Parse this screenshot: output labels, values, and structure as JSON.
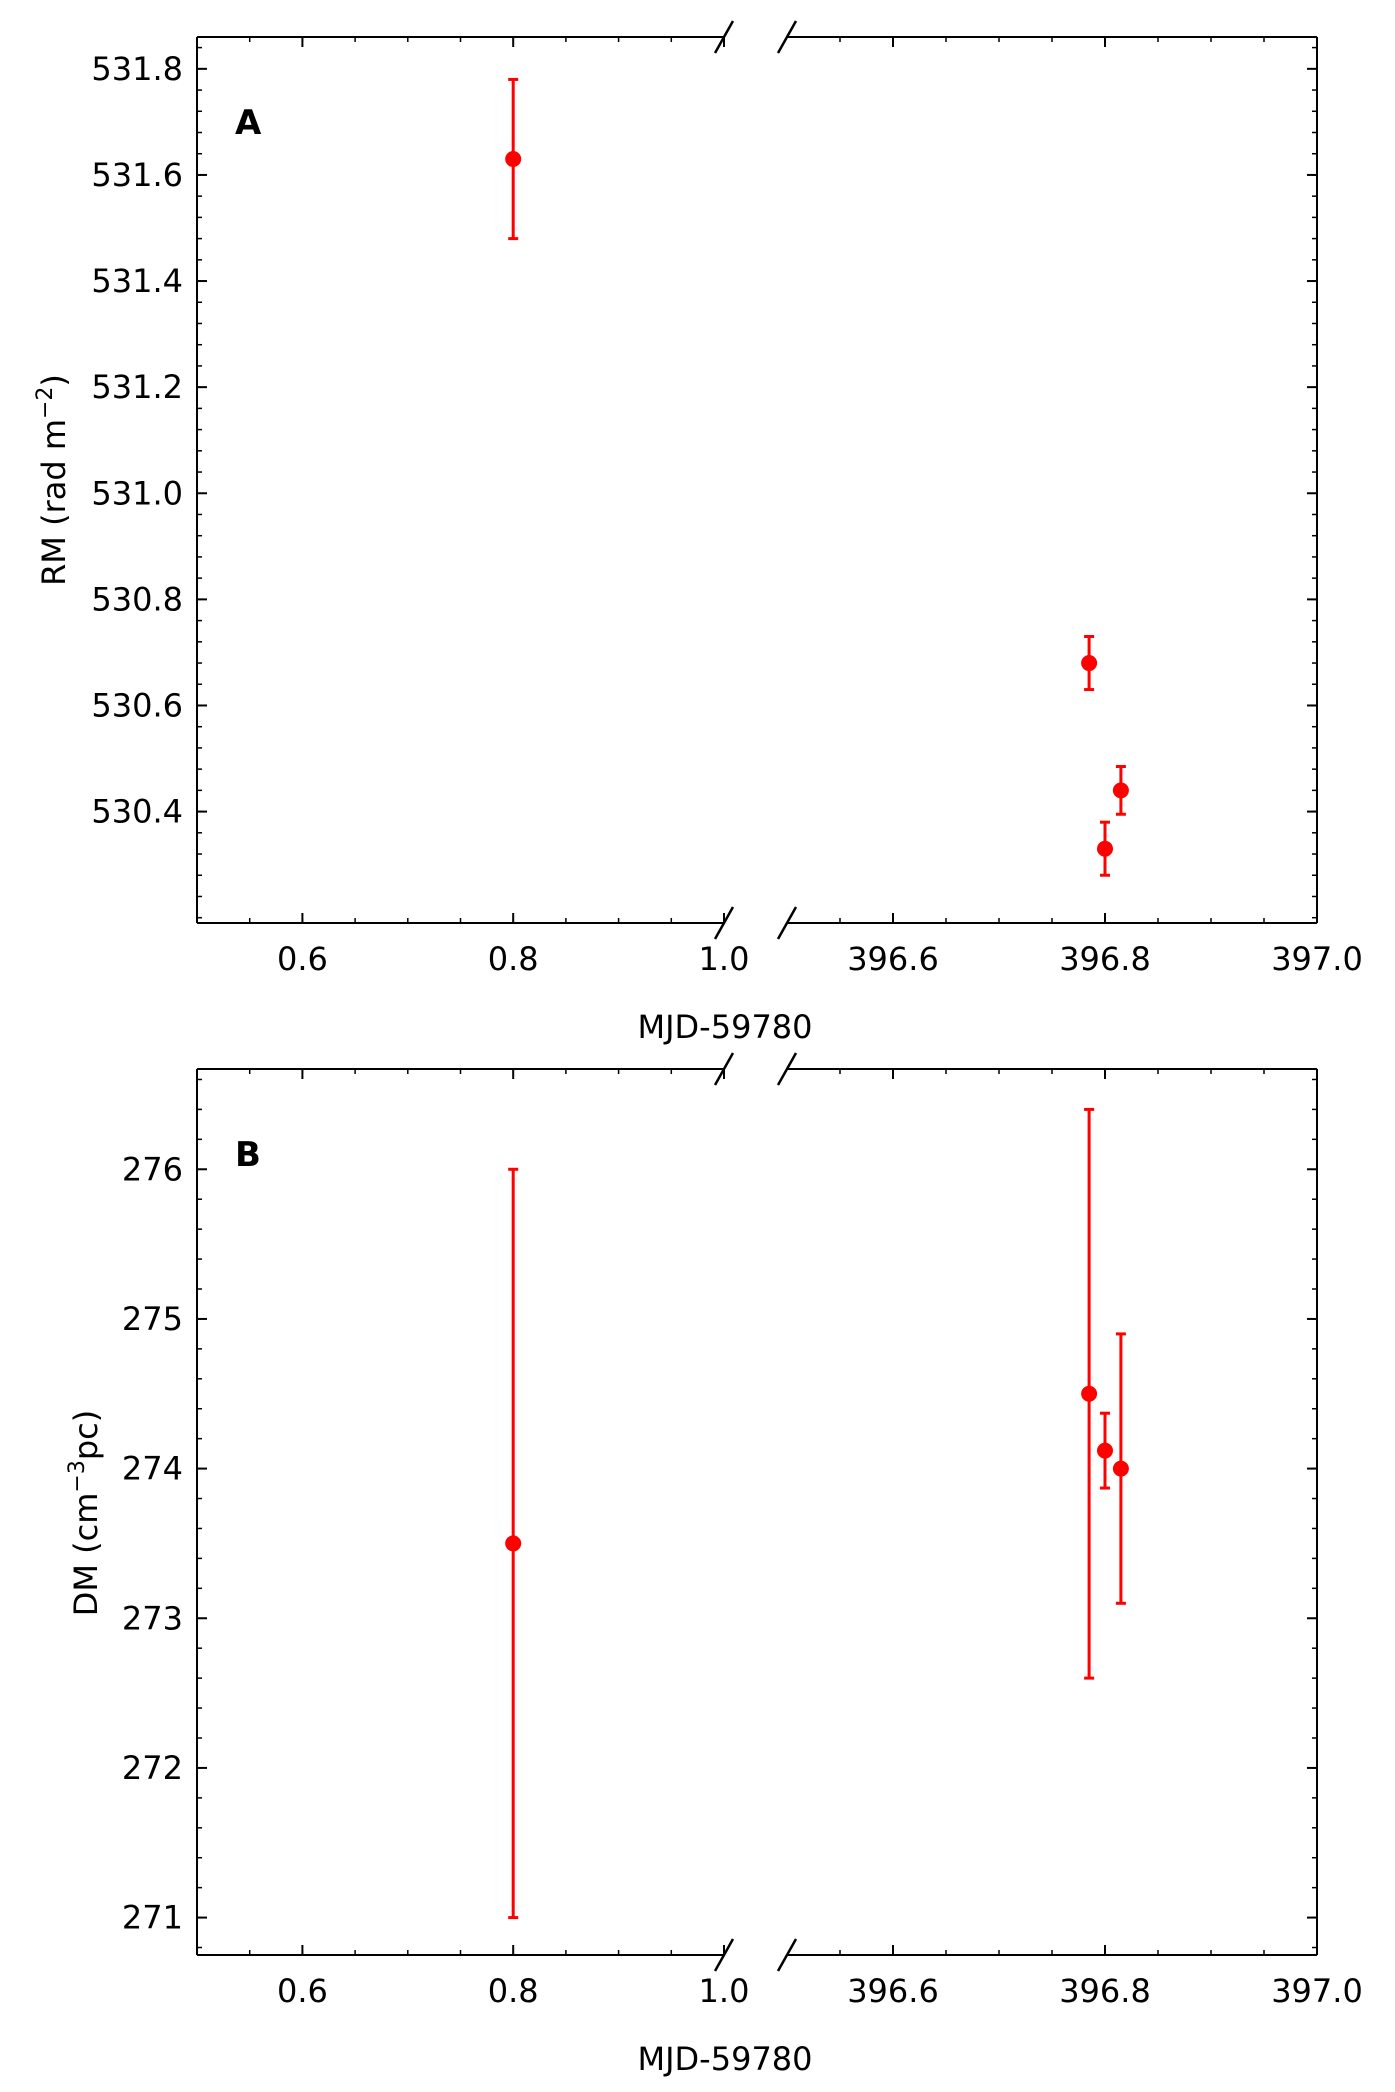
{
  "chart_data": [
    {
      "type": "scatter",
      "panel": "A",
      "xlabel": "MJD-59780",
      "ylabel": "RM (rad m",
      "ylabel_sup": "−2",
      "ylabel_tail": ")",
      "broken_x_axis": true,
      "x_segments": [
        {
          "xlim": [
            0.5,
            1.0
          ],
          "ticks": [
            0.6,
            0.8,
            1.0
          ],
          "tick_labels": [
            "0.6",
            "0.8",
            "1.0"
          ]
        },
        {
          "xlim": [
            396.5,
            397.0
          ],
          "ticks": [
            396.6,
            396.8,
            397.0
          ],
          "tick_labels": [
            "396.6",
            "396.8",
            "397.0"
          ]
        }
      ],
      "ylim": [
        530.19,
        531.86
      ],
      "y_ticks": [
        530.4,
        530.6,
        530.8,
        531.0,
        531.2,
        531.4,
        531.6,
        531.8
      ],
      "y_tick_labels": [
        "530.4",
        "530.6",
        "530.8",
        "531.0",
        "531.2",
        "531.4",
        "531.6",
        "531.8"
      ],
      "marker_color": "#ff0000",
      "points": [
        {
          "x": 0.8,
          "y": 531.63,
          "err": 0.15
        },
        {
          "x": 396.785,
          "y": 530.68,
          "err": 0.05
        },
        {
          "x": 396.8,
          "y": 530.33,
          "err": 0.05
        },
        {
          "x": 396.815,
          "y": 530.44,
          "err": 0.045
        }
      ]
    },
    {
      "type": "scatter",
      "panel": "B",
      "xlabel": "MJD-59780",
      "ylabel": "DM (cm",
      "ylabel_sup": "−3",
      "ylabel_tail": "pc)",
      "broken_x_axis": true,
      "x_segments": [
        {
          "xlim": [
            0.5,
            1.0
          ],
          "ticks": [
            0.6,
            0.8,
            1.0
          ],
          "tick_labels": [
            "0.6",
            "0.8",
            "1.0"
          ]
        },
        {
          "xlim": [
            396.5,
            397.0
          ],
          "ticks": [
            396.6,
            396.8,
            397.0
          ],
          "tick_labels": [
            "396.6",
            "396.8",
            "397.0"
          ]
        }
      ],
      "ylim": [
        270.75,
        276.67
      ],
      "y_ticks": [
        271,
        272,
        273,
        274,
        275,
        276
      ],
      "y_tick_labels": [
        "271",
        "272",
        "273",
        "274",
        "275",
        "276"
      ],
      "marker_color": "#ff0000",
      "points": [
        {
          "x": 0.8,
          "y": 273.5,
          "err": 2.5
        },
        {
          "x": 396.785,
          "y": 274.5,
          "err": 1.9
        },
        {
          "x": 396.8,
          "y": 274.12,
          "err": 0.25
        },
        {
          "x": 396.815,
          "y": 274.0,
          "err": 0.9
        }
      ]
    }
  ]
}
